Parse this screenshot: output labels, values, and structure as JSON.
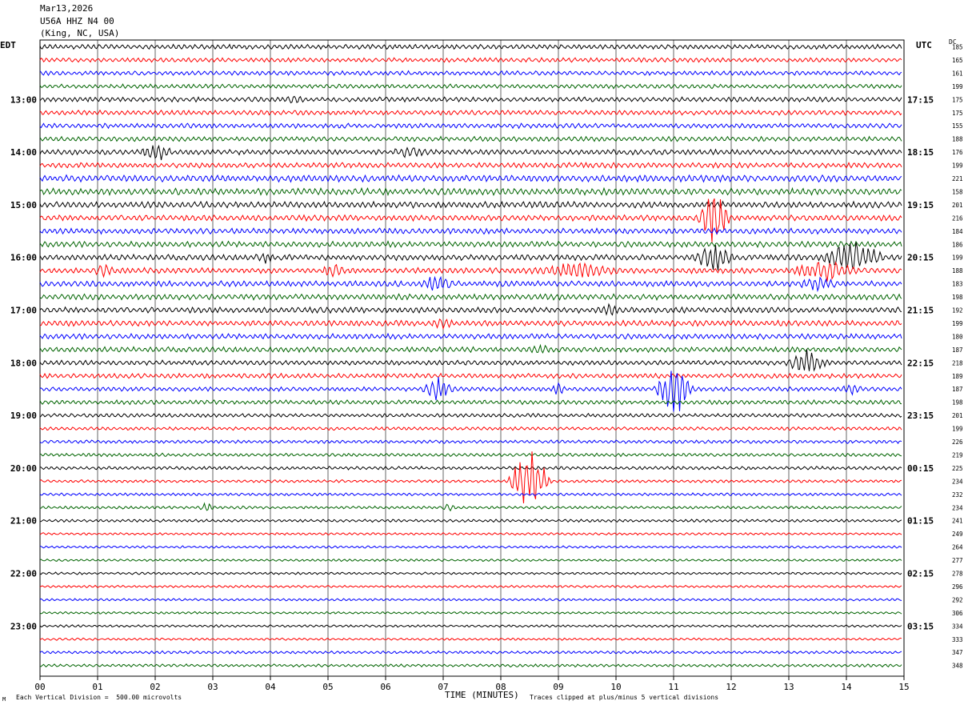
{
  "header": {
    "date": "Mar13,2026",
    "station": "U56A HHZ N4 00",
    "location": "(King, NC, USA)"
  },
  "left_label": "EDT",
  "right_label": "UTC",
  "dc_label": "DC",
  "footer": {
    "scale": "Each Vertical Division =  500.00 microvolts",
    "clip": "Traces clipped at plus/minus 5 vertical divisions",
    "corner": "M"
  },
  "colors": {
    "trace": [
      "#000000",
      "#ff0000",
      "#0000ff",
      "#006400"
    ],
    "grid": "#000000"
  },
  "chart_data": {
    "type": "line",
    "xlabel": "TIME (MINUTES)",
    "xlim": [
      0,
      15
    ],
    "x_ticks": [
      "00",
      "01",
      "02",
      "03",
      "04",
      "05",
      "06",
      "07",
      "08",
      "09",
      "10",
      "11",
      "12",
      "13",
      "14",
      "15"
    ],
    "rows_per_hour": 4,
    "row_interval_minutes": 15,
    "left_hour_labels": [
      "13:00",
      "14:00",
      "15:00",
      "16:00",
      "17:00",
      "18:00",
      "19:00",
      "20:00",
      "21:00",
      "22:00",
      "23:00"
    ],
    "right_hour_labels": [
      "17:15",
      "18:15",
      "19:15",
      "20:15",
      "21:15",
      "22:15",
      "23:15",
      "00:15",
      "01:15",
      "02:15",
      "03:15"
    ],
    "dc_offsets": [
      185,
      165,
      161,
      199,
      175,
      175,
      155,
      188,
      176,
      199,
      221,
      158,
      201,
      216,
      184,
      186,
      199,
      188,
      183,
      198,
      192,
      199,
      180,
      187,
      218,
      189,
      187,
      198,
      201,
      199,
      226,
      219,
      225,
      234,
      232,
      234,
      241,
      249,
      264,
      277,
      278,
      296,
      292,
      306,
      334,
      333,
      347,
      348
    ],
    "noise_level": [
      1.0,
      0.9,
      0.9,
      0.9,
      1.0,
      1.0,
      1.0,
      1.0,
      1.1,
      1.1,
      1.4,
      1.4,
      1.3,
      1.2,
      1.2,
      1.2,
      1.2,
      1.2,
      1.2,
      1.2,
      1.2,
      1.2,
      1.1,
      1.1,
      1.0,
      1.0,
      0.9,
      0.9,
      0.8,
      0.7,
      0.7,
      0.7,
      0.7,
      0.6,
      0.6,
      0.6,
      0.6,
      0.5,
      0.5,
      0.5,
      0.5,
      0.5,
      0.5,
      0.5,
      0.5,
      0.5,
      0.6,
      0.6
    ],
    "events": [
      {
        "row": 8,
        "minute": 2.0,
        "amp": 1.2,
        "dur": 0.3
      },
      {
        "row": 8,
        "minute": 6.4,
        "amp": 0.6,
        "dur": 0.3
      },
      {
        "row": 4,
        "minute": 4.4,
        "amp": 0.5,
        "dur": 0.2
      },
      {
        "row": 13,
        "minute": 11.7,
        "amp": 4.5,
        "dur": 0.3
      },
      {
        "row": 16,
        "minute": 11.7,
        "amp": 2.0,
        "dur": 0.4
      },
      {
        "row": 16,
        "minute": 14.1,
        "amp": 2.5,
        "dur": 0.6
      },
      {
        "row": 16,
        "minute": 3.9,
        "amp": 0.6,
        "dur": 0.2
      },
      {
        "row": 17,
        "minute": 1.1,
        "amp": 1.0,
        "dur": 0.2
      },
      {
        "row": 17,
        "minute": 5.1,
        "amp": 1.0,
        "dur": 0.2
      },
      {
        "row": 17,
        "minute": 9.3,
        "amp": 1.0,
        "dur": 0.8
      },
      {
        "row": 17,
        "minute": 13.6,
        "amp": 1.5,
        "dur": 0.6
      },
      {
        "row": 18,
        "minute": 6.9,
        "amp": 1.2,
        "dur": 0.3
      },
      {
        "row": 18,
        "minute": 13.5,
        "amp": 0.8,
        "dur": 0.4
      },
      {
        "row": 20,
        "minute": 9.9,
        "amp": 0.8,
        "dur": 0.2
      },
      {
        "row": 21,
        "minute": 7.0,
        "amp": 0.6,
        "dur": 0.2
      },
      {
        "row": 23,
        "minute": 8.7,
        "amp": 0.5,
        "dur": 0.2
      },
      {
        "row": 24,
        "minute": 13.3,
        "amp": 1.8,
        "dur": 0.4
      },
      {
        "row": 26,
        "minute": 6.9,
        "amp": 1.6,
        "dur": 0.3
      },
      {
        "row": 26,
        "minute": 11.0,
        "amp": 4.0,
        "dur": 0.35
      },
      {
        "row": 26,
        "minute": 9.0,
        "amp": 0.7,
        "dur": 0.15
      },
      {
        "row": 26,
        "minute": 14.1,
        "amp": 0.6,
        "dur": 0.2
      },
      {
        "row": 33,
        "minute": 8.5,
        "amp": 5.0,
        "dur": 0.4
      },
      {
        "row": 35,
        "minute": 2.9,
        "amp": 0.6,
        "dur": 0.15
      },
      {
        "row": 35,
        "minute": 7.1,
        "amp": 0.6,
        "dur": 0.15
      }
    ]
  }
}
